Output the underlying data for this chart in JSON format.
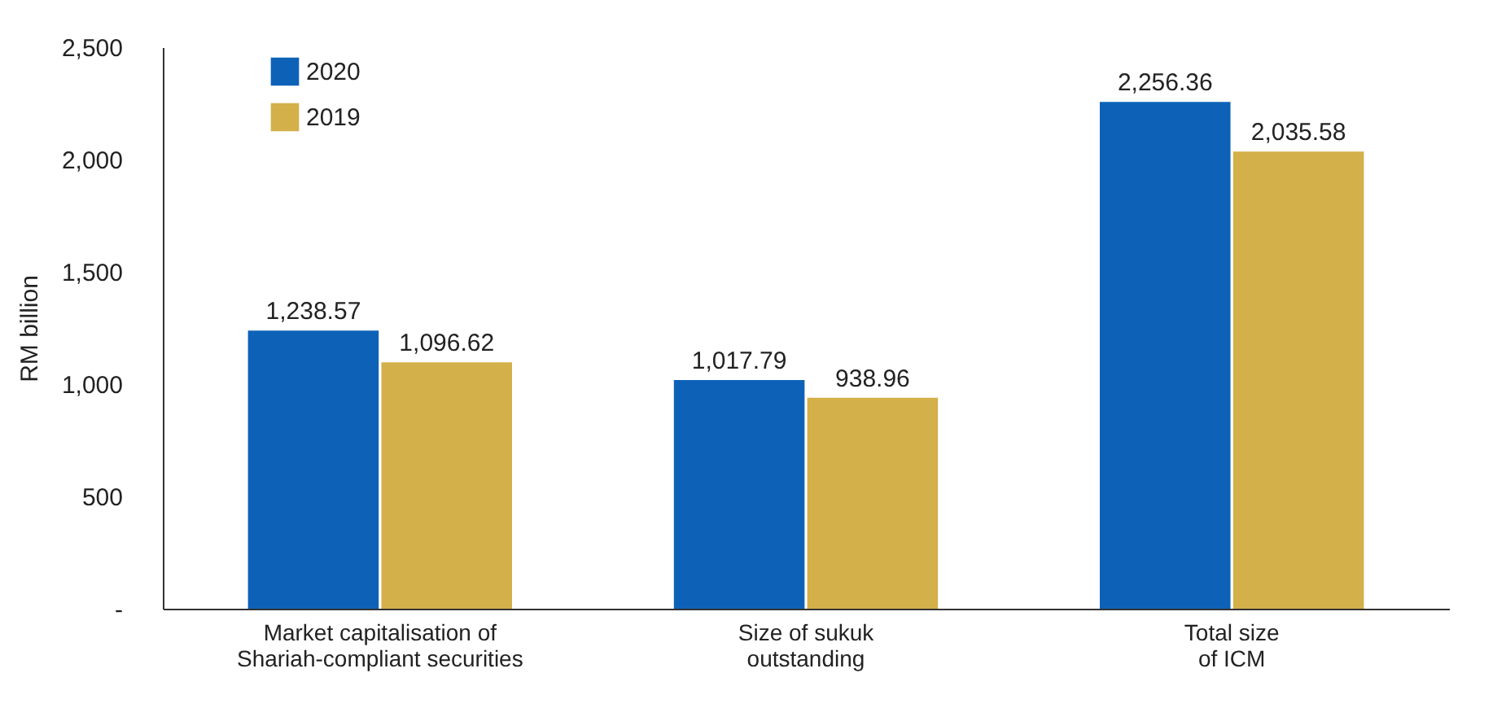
{
  "chart_data": {
    "type": "bar",
    "ylabel": "RM billion",
    "categories": [
      "Market capitalisation of Shariah-compliant securities",
      "Size of sukuk outstanding",
      "Total size of ICM"
    ],
    "series": [
      {
        "name": "2020",
        "color": "#0d62b8",
        "values": [
          1238.57,
          1017.79,
          2256.36
        ],
        "value_labels": [
          "1,238.57",
          "1,017.79",
          "2,256.36"
        ]
      },
      {
        "name": "2019",
        "color": "#d4b04a",
        "values": [
          1096.62,
          938.96,
          2035.58
        ],
        "value_labels": [
          "1,096.62",
          "938.96",
          "2,035.58"
        ]
      }
    ],
    "ylim": [
      0,
      2500
    ],
    "yticks": [
      {
        "value": 0,
        "label": "-"
      },
      500,
      {
        "value": 1000,
        "label": "1,000"
      },
      {
        "value": 1500,
        "label": "1,500"
      },
      {
        "value": 2000,
        "label": "2,000"
      },
      {
        "value": 2500,
        "label": "2,500"
      }
    ],
    "legend": "top left"
  }
}
